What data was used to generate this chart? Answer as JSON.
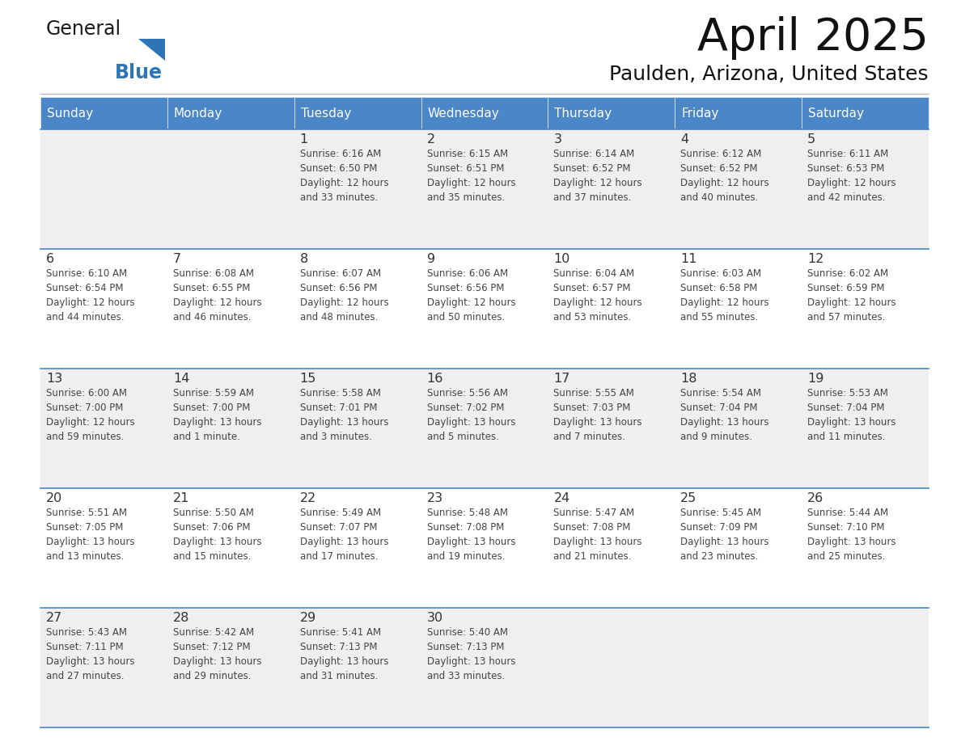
{
  "title": "April 2025",
  "subtitle": "Paulden, Arizona, United States",
  "header_color": "#4a86c8",
  "header_text_color": "#FFFFFF",
  "weekdays": [
    "Sunday",
    "Monday",
    "Tuesday",
    "Wednesday",
    "Thursday",
    "Friday",
    "Saturday"
  ],
  "row_bg_even": "#EFEFEF",
  "row_bg_odd": "#FFFFFF",
  "cell_text_color": "#444444",
  "day_number_color": "#333333",
  "logo_general_color": "#1a1a1a",
  "logo_blue_color": "#2E75B6",
  "border_color": "#4a86c8",
  "line_color": "#BBBBBB",
  "weeks": [
    [
      {
        "day": null,
        "text": ""
      },
      {
        "day": null,
        "text": ""
      },
      {
        "day": 1,
        "text": "Sunrise: 6:16 AM\nSunset: 6:50 PM\nDaylight: 12 hours\nand 33 minutes."
      },
      {
        "day": 2,
        "text": "Sunrise: 6:15 AM\nSunset: 6:51 PM\nDaylight: 12 hours\nand 35 minutes."
      },
      {
        "day": 3,
        "text": "Sunrise: 6:14 AM\nSunset: 6:52 PM\nDaylight: 12 hours\nand 37 minutes."
      },
      {
        "day": 4,
        "text": "Sunrise: 6:12 AM\nSunset: 6:52 PM\nDaylight: 12 hours\nand 40 minutes."
      },
      {
        "day": 5,
        "text": "Sunrise: 6:11 AM\nSunset: 6:53 PM\nDaylight: 12 hours\nand 42 minutes."
      }
    ],
    [
      {
        "day": 6,
        "text": "Sunrise: 6:10 AM\nSunset: 6:54 PM\nDaylight: 12 hours\nand 44 minutes."
      },
      {
        "day": 7,
        "text": "Sunrise: 6:08 AM\nSunset: 6:55 PM\nDaylight: 12 hours\nand 46 minutes."
      },
      {
        "day": 8,
        "text": "Sunrise: 6:07 AM\nSunset: 6:56 PM\nDaylight: 12 hours\nand 48 minutes."
      },
      {
        "day": 9,
        "text": "Sunrise: 6:06 AM\nSunset: 6:56 PM\nDaylight: 12 hours\nand 50 minutes."
      },
      {
        "day": 10,
        "text": "Sunrise: 6:04 AM\nSunset: 6:57 PM\nDaylight: 12 hours\nand 53 minutes."
      },
      {
        "day": 11,
        "text": "Sunrise: 6:03 AM\nSunset: 6:58 PM\nDaylight: 12 hours\nand 55 minutes."
      },
      {
        "day": 12,
        "text": "Sunrise: 6:02 AM\nSunset: 6:59 PM\nDaylight: 12 hours\nand 57 minutes."
      }
    ],
    [
      {
        "day": 13,
        "text": "Sunrise: 6:00 AM\nSunset: 7:00 PM\nDaylight: 12 hours\nand 59 minutes."
      },
      {
        "day": 14,
        "text": "Sunrise: 5:59 AM\nSunset: 7:00 PM\nDaylight: 13 hours\nand 1 minute."
      },
      {
        "day": 15,
        "text": "Sunrise: 5:58 AM\nSunset: 7:01 PM\nDaylight: 13 hours\nand 3 minutes."
      },
      {
        "day": 16,
        "text": "Sunrise: 5:56 AM\nSunset: 7:02 PM\nDaylight: 13 hours\nand 5 minutes."
      },
      {
        "day": 17,
        "text": "Sunrise: 5:55 AM\nSunset: 7:03 PM\nDaylight: 13 hours\nand 7 minutes."
      },
      {
        "day": 18,
        "text": "Sunrise: 5:54 AM\nSunset: 7:04 PM\nDaylight: 13 hours\nand 9 minutes."
      },
      {
        "day": 19,
        "text": "Sunrise: 5:53 AM\nSunset: 7:04 PM\nDaylight: 13 hours\nand 11 minutes."
      }
    ],
    [
      {
        "day": 20,
        "text": "Sunrise: 5:51 AM\nSunset: 7:05 PM\nDaylight: 13 hours\nand 13 minutes."
      },
      {
        "day": 21,
        "text": "Sunrise: 5:50 AM\nSunset: 7:06 PM\nDaylight: 13 hours\nand 15 minutes."
      },
      {
        "day": 22,
        "text": "Sunrise: 5:49 AM\nSunset: 7:07 PM\nDaylight: 13 hours\nand 17 minutes."
      },
      {
        "day": 23,
        "text": "Sunrise: 5:48 AM\nSunset: 7:08 PM\nDaylight: 13 hours\nand 19 minutes."
      },
      {
        "day": 24,
        "text": "Sunrise: 5:47 AM\nSunset: 7:08 PM\nDaylight: 13 hours\nand 21 minutes."
      },
      {
        "day": 25,
        "text": "Sunrise: 5:45 AM\nSunset: 7:09 PM\nDaylight: 13 hours\nand 23 minutes."
      },
      {
        "day": 26,
        "text": "Sunrise: 5:44 AM\nSunset: 7:10 PM\nDaylight: 13 hours\nand 25 minutes."
      }
    ],
    [
      {
        "day": 27,
        "text": "Sunrise: 5:43 AM\nSunset: 7:11 PM\nDaylight: 13 hours\nand 27 minutes."
      },
      {
        "day": 28,
        "text": "Sunrise: 5:42 AM\nSunset: 7:12 PM\nDaylight: 13 hours\nand 29 minutes."
      },
      {
        "day": 29,
        "text": "Sunrise: 5:41 AM\nSunset: 7:13 PM\nDaylight: 13 hours\nand 31 minutes."
      },
      {
        "day": 30,
        "text": "Sunrise: 5:40 AM\nSunset: 7:13 PM\nDaylight: 13 hours\nand 33 minutes."
      },
      {
        "day": null,
        "text": ""
      },
      {
        "day": null,
        "text": ""
      },
      {
        "day": null,
        "text": ""
      }
    ]
  ]
}
